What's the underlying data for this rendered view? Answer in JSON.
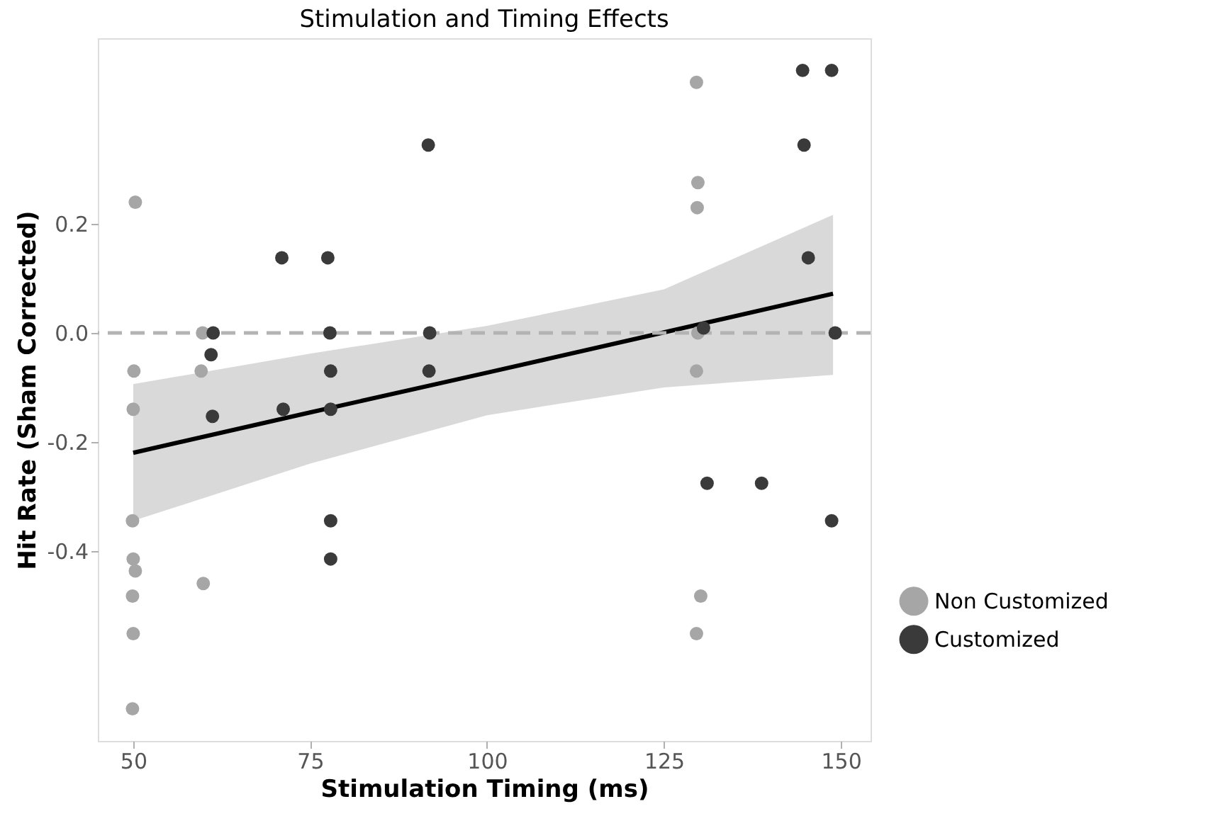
{
  "chart_data": {
    "type": "scatter",
    "title": "Stimulation and Timing Effects",
    "xlabel": "Stimulation Timing (ms)",
    "ylabel": "Hit Rate (Sham Corrected)",
    "xlim": [
      45,
      154.2
    ],
    "ylim": [
      -0.749,
      0.541
    ],
    "xticks": [
      50,
      75,
      100,
      125,
      150
    ],
    "yticks": [
      {
        "value": 0.2,
        "label": "0.2"
      },
      {
        "value": 0,
        "label": "0.0"
      },
      {
        "value": -0.2,
        "label": "-0.2"
      },
      {
        "value": -0.4,
        "label": "-0.4"
      }
    ],
    "grid": false,
    "legend": "right",
    "marker": "circle",
    "ref_lines": [
      {
        "axis": "y",
        "value": 0,
        "color": "#b3b3b3",
        "line_style": "dashed"
      }
    ],
    "series": [
      {
        "name": "Non Customized",
        "color": "#a6a6a6",
        "x": [
          50.3,
          50.1,
          50,
          49.9,
          50,
          50.3,
          49.9,
          50,
          49.9,
          59.8,
          59.6,
          59.9,
          129.6,
          129.8,
          129.7,
          129.8,
          129.6,
          130.2,
          129.6
        ],
        "values": [
          0.24,
          -0.07,
          -0.14,
          -0.345,
          -0.415,
          -0.437,
          -0.483,
          -0.552,
          -0.69,
          0,
          -0.07,
          -0.46,
          0.46,
          0.276,
          0.23,
          0,
          -0.07,
          -0.483,
          -0.552
        ]
      },
      {
        "name": "Customized",
        "color": "#3a3a3a",
        "x": [
          61.3,
          61.0,
          61.2,
          71.0,
          71.2,
          77.5,
          77.8,
          77.9,
          77.9,
          77.9,
          77.9,
          91.7,
          91.9,
          91.8,
          144.6,
          148.7,
          144.8,
          145.4,
          130.6,
          149.2,
          131.1,
          138.8,
          148.7
        ],
        "values": [
          0,
          -0.04,
          -0.153,
          0.138,
          -0.14,
          0.138,
          0,
          -0.07,
          -0.14,
          -0.345,
          -0.415,
          0.345,
          0,
          -0.07,
          0.482,
          0.482,
          0.345,
          0.138,
          0.009,
          0,
          -0.276,
          -0.276,
          -0.345
        ]
      },
      {
        "type": "line",
        "color": "#000000",
        "line_style": "solid",
        "marker": "none",
        "x": [
          50,
          75,
          100,
          125,
          148.9
        ],
        "values": [
          -0.22,
          -0.146,
          -0.073,
          0.001,
          0.072
        ],
        "lower": [
          -0.345,
          -0.24,
          -0.151,
          -0.1,
          -0.077
        ],
        "upper": [
          -0.094,
          -0.038,
          0.013,
          0.08,
          0.217
        ]
      }
    ]
  }
}
